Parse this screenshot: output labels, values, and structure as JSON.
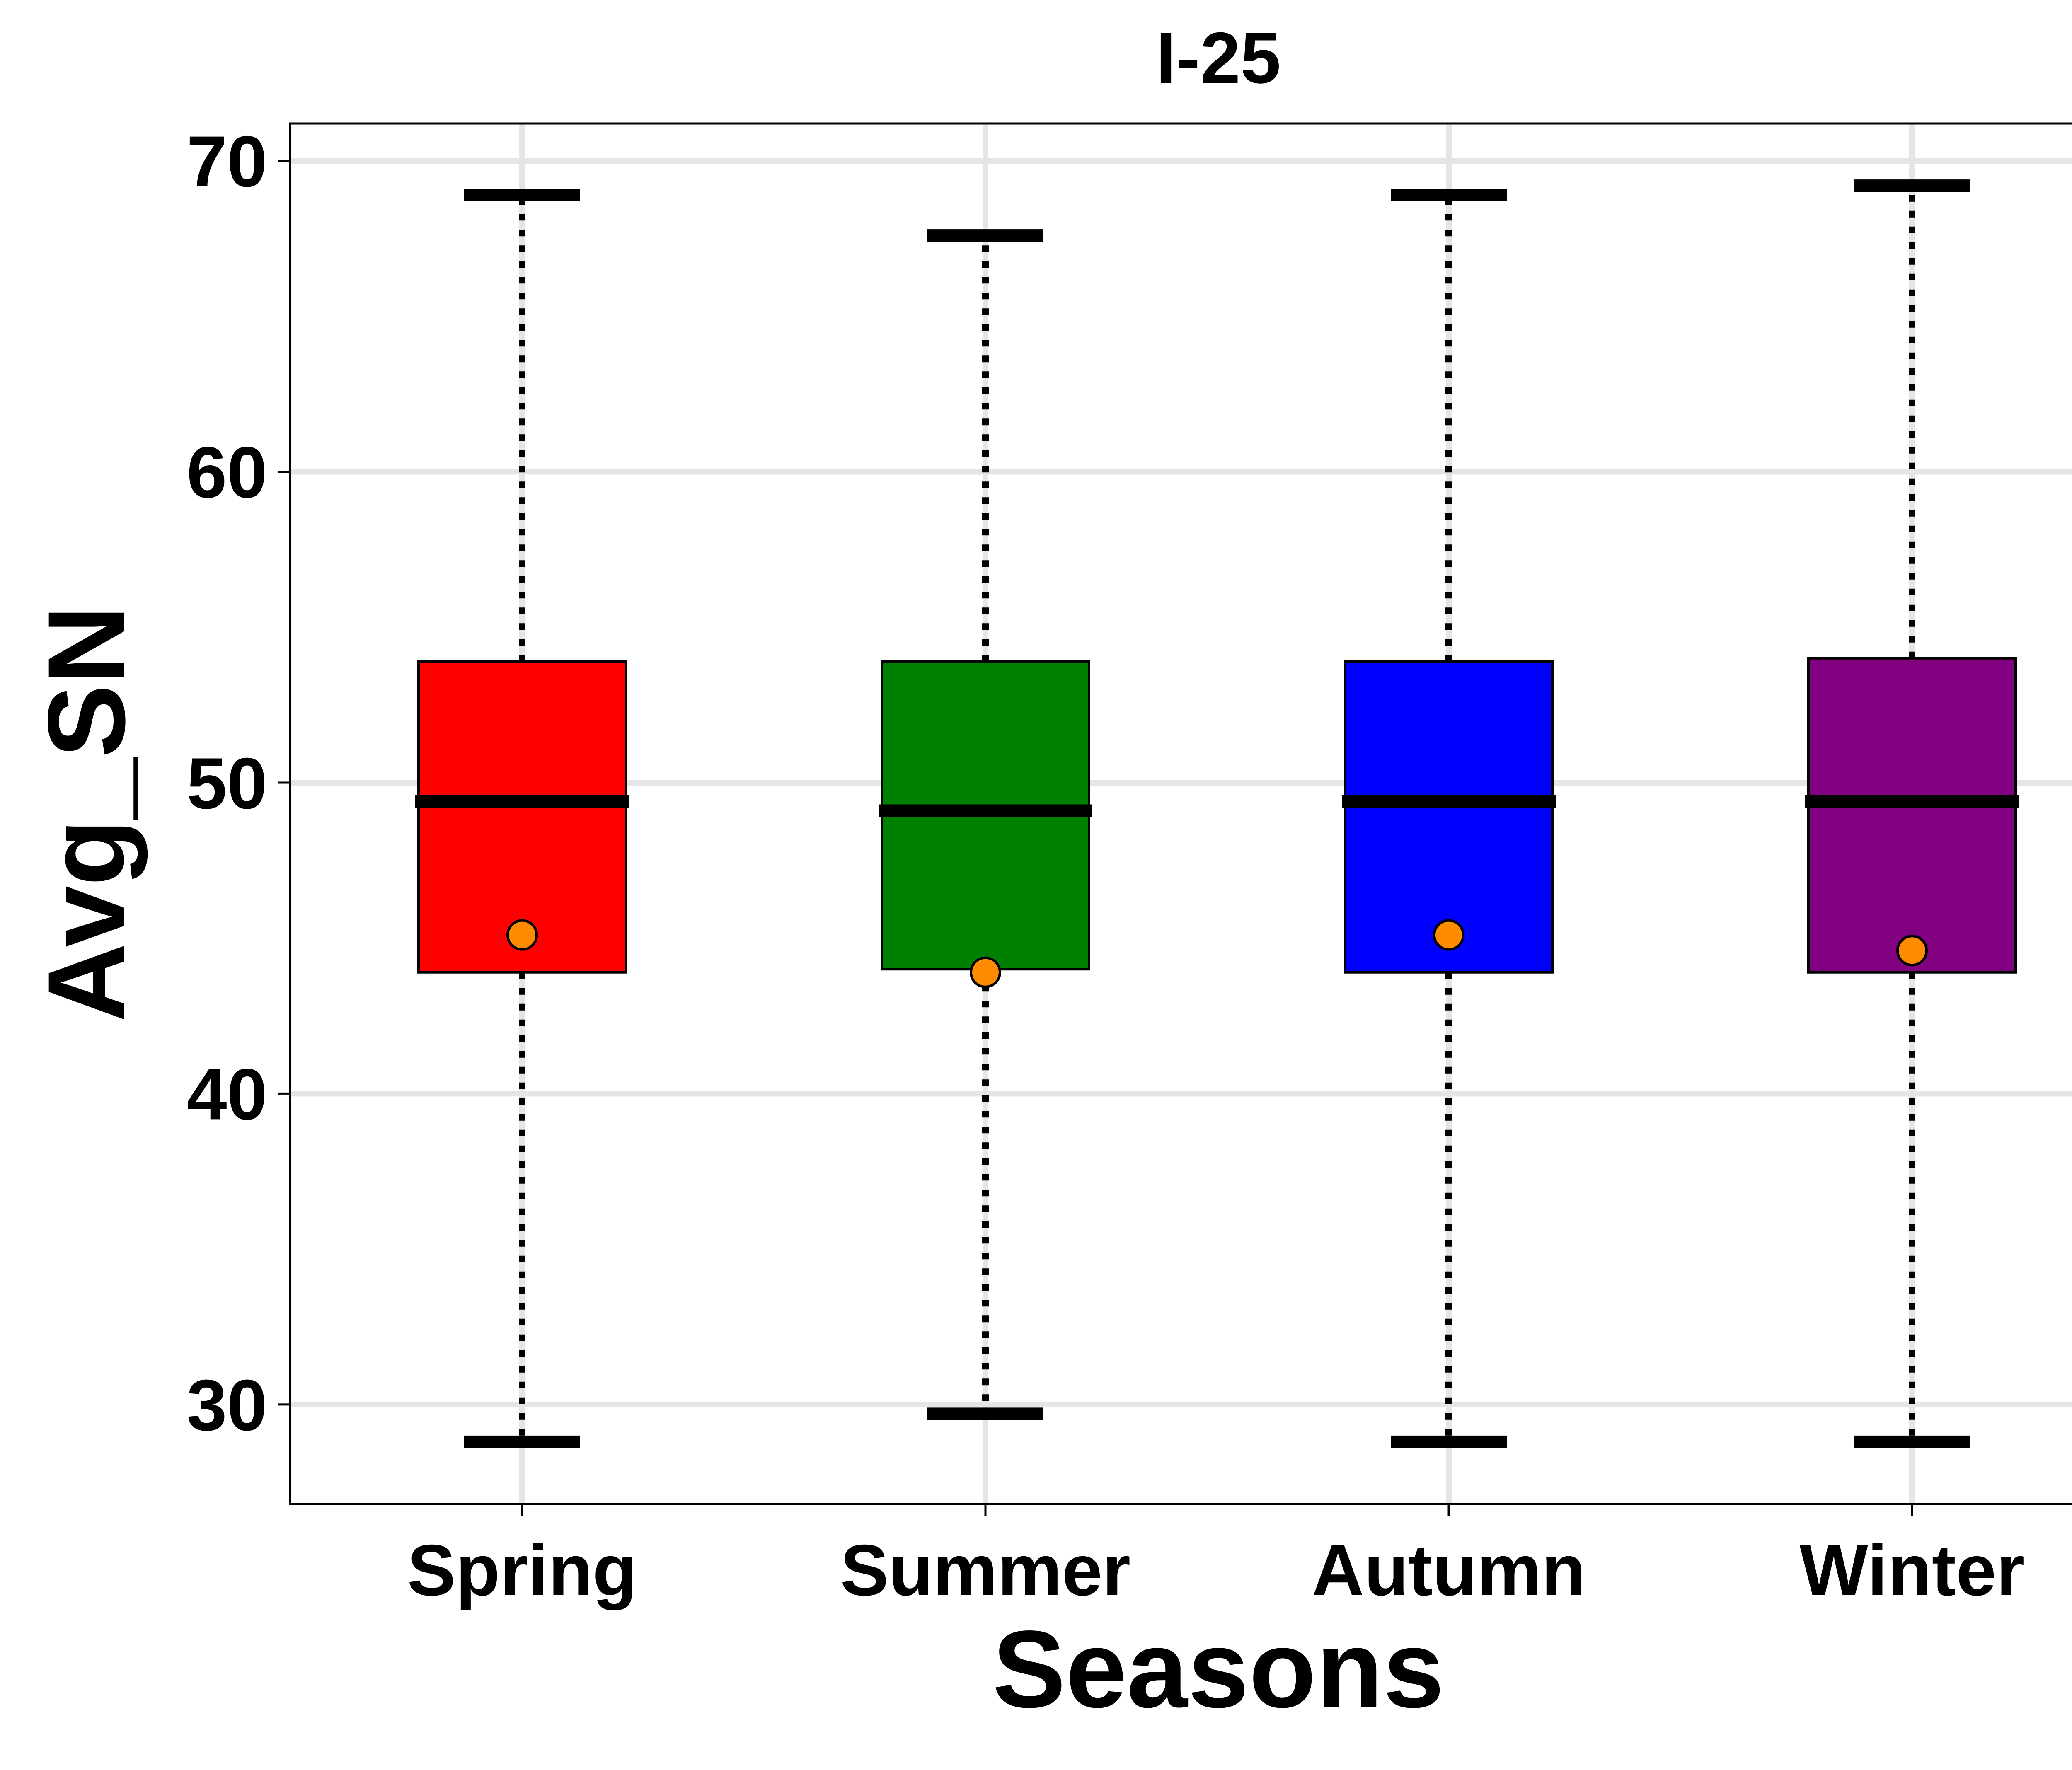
{
  "chart_data": {
    "type": "box",
    "title": "I-25",
    "xlabel": "Seasons",
    "ylabel": "Avg_SN",
    "ylim": [
      26.8,
      71.2
    ],
    "yticks": [
      30,
      40,
      50,
      60,
      70
    ],
    "grid": true,
    "categories": [
      "Spring",
      "Summer",
      "Autumn",
      "Winter"
    ],
    "boxes": [
      {
        "label": "Spring",
        "whisker_low": 28.8,
        "q1": 43.9,
        "median": 49.4,
        "q3": 53.9,
        "whisker_high": 68.9,
        "mean": 45.1,
        "color": "#ff0000"
      },
      {
        "label": "Summer",
        "whisker_low": 29.7,
        "q1": 44.0,
        "median": 49.1,
        "q3": 53.9,
        "whisker_high": 67.6,
        "mean": 43.9,
        "color": "#008000"
      },
      {
        "label": "Autumn",
        "whisker_low": 28.8,
        "q1": 43.9,
        "median": 49.4,
        "q3": 53.9,
        "whisker_high": 68.9,
        "mean": 45.1,
        "color": "#0000ff"
      },
      {
        "label": "Winter",
        "whisker_low": 28.8,
        "q1": 43.9,
        "median": 49.4,
        "q3": 54.0,
        "whisker_high": 69.2,
        "mean": 44.6,
        "color": "#800080"
      }
    ],
    "mean_marker_color": "#ff8c00"
  }
}
